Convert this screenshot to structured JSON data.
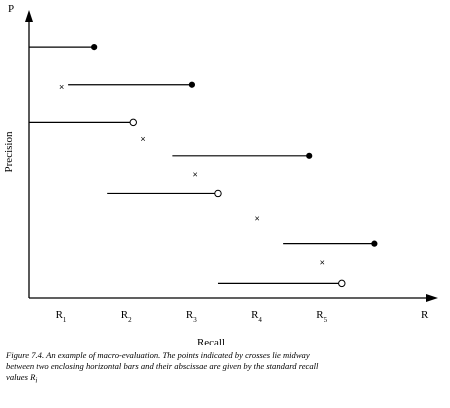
{
  "chart_data": {
    "type": "scatter",
    "title": "",
    "xlabel": "Recall",
    "ylabel": "Precision",
    "x_axis_end_label": "R",
    "y_axis_end_label": "P",
    "xlim": [
      0,
      6
    ],
    "ylim": [
      0,
      6.6
    ],
    "x_ticks": [
      {
        "value": 0.5,
        "label": "R",
        "sub": "1"
      },
      {
        "value": 1.5,
        "label": "R",
        "sub": "2"
      },
      {
        "value": 2.5,
        "label": "R",
        "sub": "3"
      },
      {
        "value": 3.5,
        "label": "R",
        "sub": "4"
      },
      {
        "value": 4.5,
        "label": "R",
        "sub": "5"
      }
    ],
    "grid": false,
    "legend": "none",
    "series": [
      {
        "mark": "horizontal-bar",
        "bars": [
          {
            "x_start": 0.0,
            "x_end": 1.0,
            "y": 6.0,
            "end_marker": "filled"
          },
          {
            "x_start": 0.6,
            "x_end": 2.5,
            "y": 5.1,
            "end_marker": "filled"
          },
          {
            "x_start": 0.0,
            "x_end": 1.6,
            "y": 4.2,
            "end_marker": "open"
          },
          {
            "x_start": 2.2,
            "x_end": 4.3,
            "y": 3.4,
            "end_marker": "filled"
          },
          {
            "x_start": 1.2,
            "x_end": 2.9,
            "y": 2.5,
            "end_marker": "open"
          },
          {
            "x_start": 3.9,
            "x_end": 5.3,
            "y": 1.3,
            "end_marker": "filled"
          },
          {
            "x_start": 2.9,
            "x_end": 4.8,
            "y": 0.35,
            "end_marker": "open"
          }
        ]
      },
      {
        "mark": "cross",
        "points": [
          {
            "x": 0.5,
            "y": 5.05
          },
          {
            "x": 1.75,
            "y": 3.8
          },
          {
            "x": 2.55,
            "y": 2.95
          },
          {
            "x": 3.5,
            "y": 1.9
          },
          {
            "x": 4.5,
            "y": 0.85
          }
        ]
      }
    ]
  },
  "caption": {
    "line1": "Figure 7.4.  An example of macro-evaluation.   The points indicated by crosses lie midway",
    "line2": "between two enclosing horizontal bars and their abscissae are given by the standard recall",
    "line3": "values R",
    "line3_sub": "i"
  }
}
